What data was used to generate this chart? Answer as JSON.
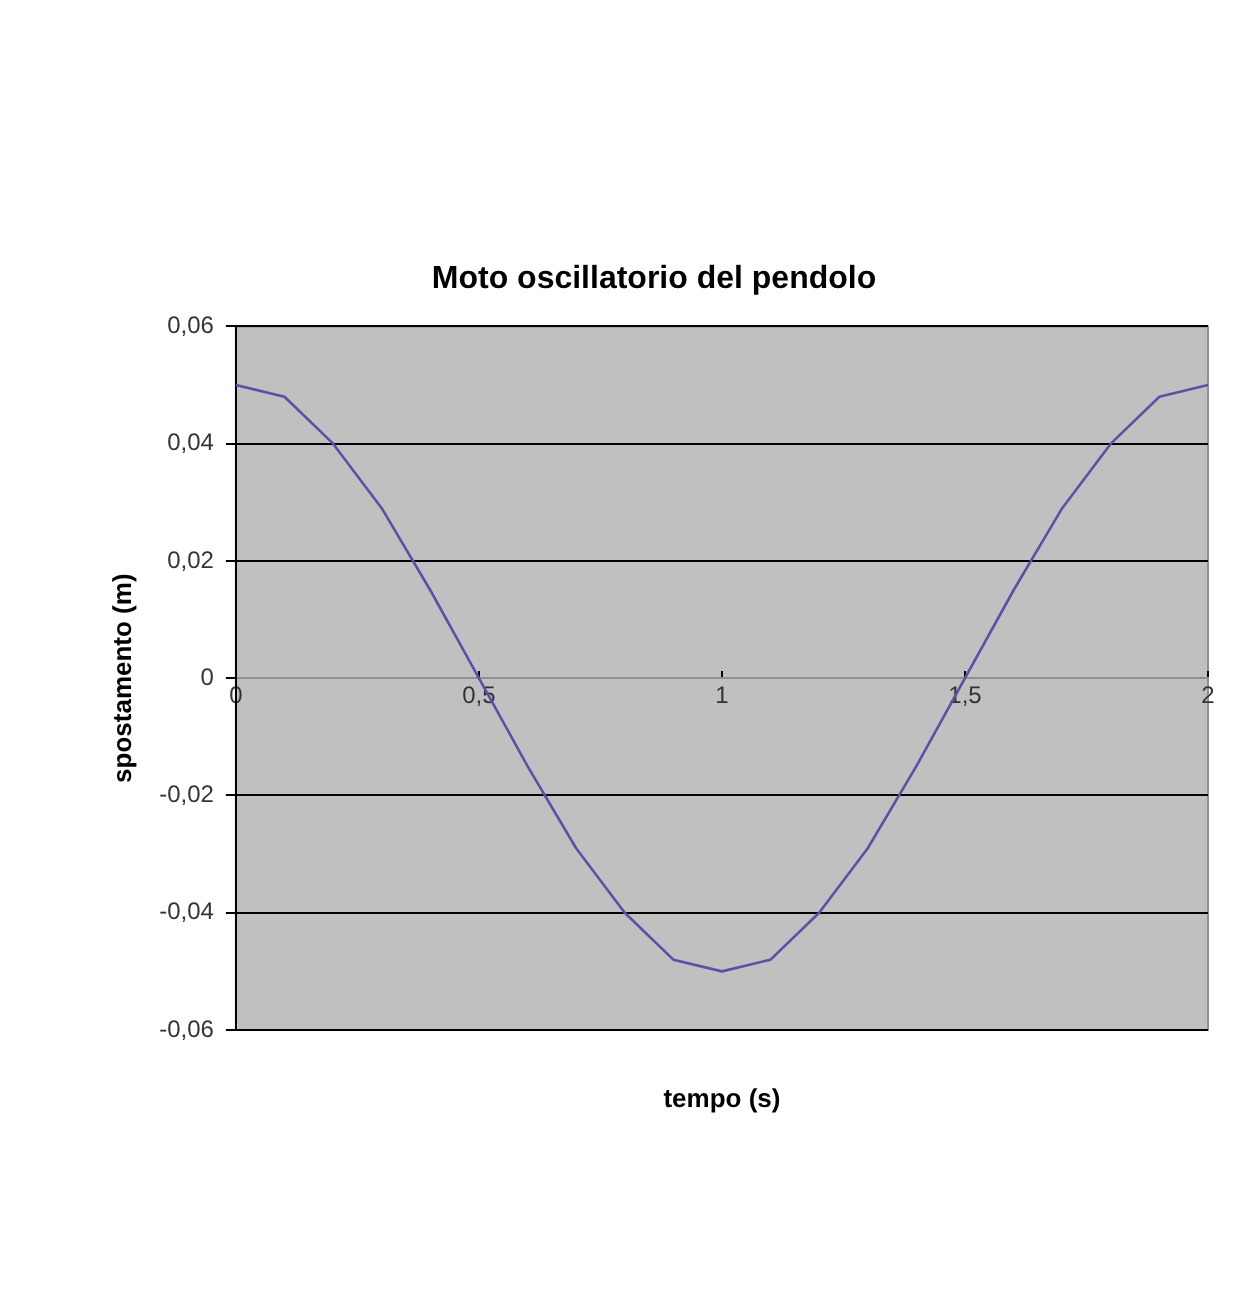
{
  "chart_data": {
    "type": "line",
    "title": "Moto oscillatorio del pendolo",
    "xlabel": "tempo (s)",
    "ylabel": "spostamento (m)",
    "x": [
      0,
      0.1,
      0.2,
      0.3,
      0.4,
      0.5,
      0.6,
      0.7,
      0.8,
      0.9,
      1,
      1.1,
      1.2,
      1.3,
      1.4,
      1.5,
      1.6,
      1.7,
      1.8,
      1.9,
      2
    ],
    "series": [
      {
        "color": "#5a50a8",
        "values": [
          0.05,
          0.048,
          0.04,
          0.029,
          0.015,
          0,
          -0.015,
          -0.029,
          -0.04,
          -0.048,
          -0.05,
          -0.048,
          -0.04,
          -0.029,
          -0.015,
          0,
          0.015,
          0.029,
          0.04,
          0.048,
          0.05
        ]
      }
    ],
    "xlim": [
      0,
      2
    ],
    "xticks": [
      0,
      {
        "value": 0.5,
        "label": "0,5"
      },
      1,
      {
        "value": 1.5,
        "label": "1,5"
      },
      2
    ],
    "ylim": [
      -0.06,
      0.06
    ],
    "yticks": [
      {
        "value": -0.06,
        "label": "-0,06"
      },
      {
        "value": -0.04,
        "label": "-0,04"
      },
      {
        "value": -0.02,
        "label": "-0,02"
      },
      0,
      {
        "value": 0.02,
        "label": "0,02"
      },
      {
        "value": 0.04,
        "label": "0,04"
      },
      {
        "value": 0.06,
        "label": "0,06"
      }
    ],
    "grid": "y",
    "legend": false,
    "marker": "none",
    "line_style": "solid"
  }
}
